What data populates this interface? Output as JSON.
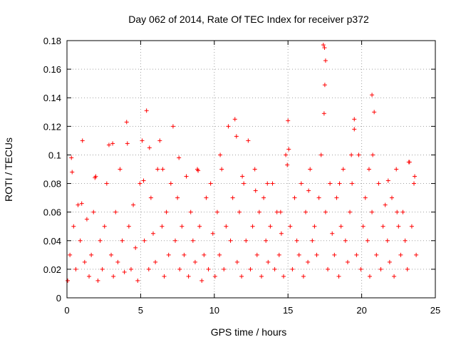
{
  "chart_data": {
    "type": "scatter",
    "title": "Day 062 of 2014, Rate Of TEC Index for receiver p372",
    "xlabel": "GPS time / hours",
    "ylabel": "ROTI / TECUs",
    "xlim": [
      0,
      25
    ],
    "ylim": [
      0,
      0.18
    ],
    "xticks": [
      0,
      5,
      10,
      15,
      20,
      25
    ],
    "xtick_labels": [
      "0",
      "5",
      "10",
      "15",
      "20",
      "25"
    ],
    "yticks": [
      0,
      0.02,
      0.04,
      0.06,
      0.08,
      0.1,
      0.12,
      0.14,
      0.16,
      0.18
    ],
    "ytick_labels": [
      "0",
      "0.02",
      "0.04",
      "0.06",
      "0.08",
      "0.1",
      "0.12",
      "0.14",
      "0.16",
      "0.18"
    ],
    "grid": true,
    "marker": "+",
    "color": "#ff0000",
    "series": [
      {
        "name": "ROTI",
        "x": [
          0.05,
          0.2,
          0.3,
          0.45,
          0.6,
          0.75,
          0.9,
          1.05,
          1.2,
          1.35,
          1.5,
          1.65,
          1.8,
          1.95,
          2.1,
          2.25,
          2.4,
          2.55,
          2.7,
          2.85,
          3.0,
          3.15,
          3.3,
          3.45,
          3.6,
          3.75,
          3.9,
          4.05,
          4.2,
          4.35,
          4.5,
          4.65,
          4.8,
          4.95,
          5.1,
          5.25,
          5.4,
          5.55,
          5.7,
          5.85,
          6.0,
          6.15,
          6.3,
          6.45,
          6.6,
          6.75,
          6.9,
          7.05,
          7.2,
          7.35,
          7.5,
          7.65,
          7.8,
          7.95,
          8.1,
          8.25,
          8.4,
          8.55,
          8.7,
          8.85,
          9.0,
          9.15,
          9.3,
          9.45,
          9.6,
          9.75,
          9.9,
          10.05,
          10.2,
          10.35,
          10.5,
          10.65,
          10.8,
          10.95,
          11.1,
          11.25,
          11.4,
          11.55,
          11.7,
          11.85,
          12.0,
          12.15,
          12.3,
          12.45,
          12.6,
          12.75,
          12.9,
          13.05,
          13.2,
          13.35,
          13.5,
          13.65,
          13.8,
          13.95,
          14.1,
          14.25,
          14.4,
          14.55,
          14.7,
          14.85,
          15.0,
          15.15,
          15.3,
          15.45,
          15.6,
          15.75,
          15.9,
          16.05,
          16.2,
          16.35,
          16.5,
          16.65,
          16.8,
          16.95,
          17.1,
          17.25,
          17.4,
          17.55,
          17.7,
          17.85,
          18.0,
          18.15,
          18.3,
          18.45,
          18.6,
          18.75,
          18.9,
          19.05,
          19.2,
          19.35,
          19.5,
          19.65,
          19.8,
          19.95,
          20.1,
          20.25,
          20.4,
          20.55,
          20.7,
          20.85,
          21.0,
          21.15,
          21.3,
          21.45,
          21.6,
          21.75,
          21.9,
          22.05,
          22.2,
          22.35,
          22.5,
          22.65,
          22.8,
          22.95,
          23.1,
          23.25,
          23.4,
          23.55,
          23.7,
          0.35,
          1.0,
          1.9,
          3.1,
          4.1,
          5.2,
          5.6,
          6.5,
          7.6,
          8.9,
          10.4,
          11.5,
          11.9,
          12.8,
          13.6,
          14.5,
          14.95,
          15.05,
          16.4,
          17.5,
          17.55,
          17.45,
          17.48,
          18.5,
          19.3,
          19.5,
          20.5,
          20.7,
          20.75,
          21.8,
          22.4,
          23.2,
          23.6
        ],
        "y": [
          0.012,
          0.03,
          0.098,
          0.05,
          0.02,
          0.065,
          0.04,
          0.11,
          0.025,
          0.055,
          0.015,
          0.03,
          0.06,
          0.085,
          0.012,
          0.04,
          0.02,
          0.05,
          0.08,
          0.107,
          0.03,
          0.015,
          0.06,
          0.025,
          0.09,
          0.04,
          0.018,
          0.123,
          0.05,
          0.02,
          0.065,
          0.035,
          0.012,
          0.08,
          0.11,
          0.04,
          0.131,
          0.02,
          0.07,
          0.045,
          0.025,
          0.09,
          0.11,
          0.05,
          0.015,
          0.06,
          0.03,
          0.08,
          0.12,
          0.04,
          0.07,
          0.02,
          0.05,
          0.03,
          0.085,
          0.015,
          0.06,
          0.04,
          0.025,
          0.09,
          0.05,
          0.012,
          0.03,
          0.07,
          0.02,
          0.08,
          0.045,
          0.015,
          0.06,
          0.03,
          0.09,
          0.02,
          0.05,
          0.12,
          0.04,
          0.07,
          0.125,
          0.025,
          0.06,
          0.015,
          0.08,
          0.04,
          0.11,
          0.02,
          0.05,
          0.09,
          0.03,
          0.06,
          0.015,
          0.07,
          0.04,
          0.025,
          0.05,
          0.08,
          0.02,
          0.06,
          0.03,
          0.045,
          0.015,
          0.1,
          0.124,
          0.05,
          0.02,
          0.07,
          0.04,
          0.03,
          0.08,
          0.015,
          0.06,
          0.025,
          0.09,
          0.04,
          0.05,
          0.03,
          0.07,
          0.1,
          0.177,
          0.06,
          0.02,
          0.08,
          0.045,
          0.03,
          0.07,
          0.015,
          0.05,
          0.09,
          0.04,
          0.025,
          0.06,
          0.08,
          0.125,
          0.03,
          0.1,
          0.02,
          0.05,
          0.07,
          0.04,
          0.015,
          0.06,
          0.13,
          0.03,
          0.08,
          0.02,
          0.05,
          0.065,
          0.04,
          0.025,
          0.07,
          0.015,
          0.09,
          0.05,
          0.03,
          0.06,
          0.04,
          0.02,
          0.095,
          0.05,
          0.08,
          0.03,
          0.088,
          0.066,
          0.084,
          0.108,
          0.108,
          0.082,
          0.105,
          0.09,
          0.098,
          0.089,
          0.1,
          0.113,
          0.085,
          0.075,
          0.08,
          0.06,
          0.093,
          0.104,
          0.075,
          0.149,
          0.166,
          0.129,
          0.175,
          0.08,
          0.1,
          0.118,
          0.09,
          0.142,
          0.1,
          0.082,
          0.06,
          0.095,
          0.085
        ]
      }
    ]
  }
}
